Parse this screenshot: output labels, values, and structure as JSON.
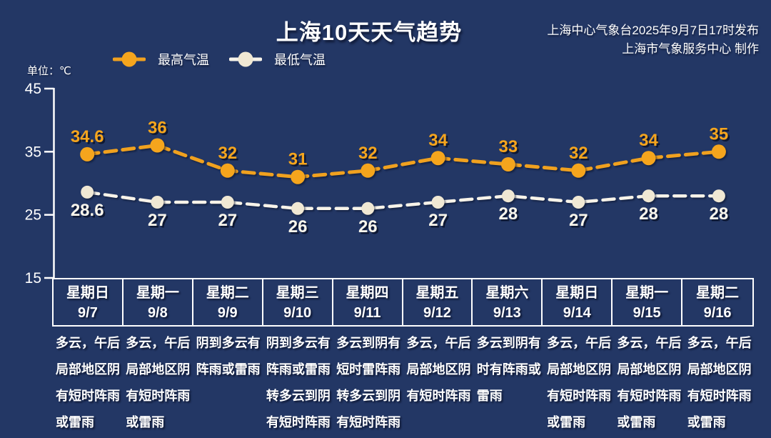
{
  "header": {
    "title": "上海10天天气趋势",
    "publisher_line1": "上海中心气象台2025年9月7日17时发布",
    "publisher_line2": "上海市气象服务中心 制作",
    "unit_label": "单位：℃"
  },
  "colors": {
    "background": "#233765",
    "max_temp": "#f5a51d",
    "min_temp_line": "#f7f3e9",
    "min_temp_marker": "#f0e8d4",
    "text": "#ffffff",
    "border": "#ffffff"
  },
  "chart_data": {
    "type": "line",
    "title": "上海10天天气趋势",
    "unit": "℃",
    "ylim": [
      15,
      45
    ],
    "yticks": [
      45,
      35,
      25,
      15
    ],
    "grid": false,
    "legend_position": "top-left",
    "line_style": "dashed",
    "x_categories": [
      {
        "weekday": "星期日",
        "date": "9/7"
      },
      {
        "weekday": "星期一",
        "date": "9/8"
      },
      {
        "weekday": "星期二",
        "date": "9/9"
      },
      {
        "weekday": "星期三",
        "date": "9/10"
      },
      {
        "weekday": "星期四",
        "date": "9/11"
      },
      {
        "weekday": "星期五",
        "date": "9/12"
      },
      {
        "weekday": "星期六",
        "date": "9/13"
      },
      {
        "weekday": "星期日",
        "date": "9/14"
      },
      {
        "weekday": "星期一",
        "date": "9/15"
      },
      {
        "weekday": "星期二",
        "date": "9/16"
      }
    ],
    "series": [
      {
        "name": "最高气温",
        "values": [
          34.6,
          36,
          32,
          31,
          32,
          34,
          33,
          32,
          34,
          35
        ],
        "line_color": "#f0a11f",
        "marker_color": "#f5a51d",
        "label_color": "#f5a51d"
      },
      {
        "name": "最低气温",
        "values": [
          28.6,
          27,
          27,
          26,
          26,
          27,
          28,
          27,
          28,
          28
        ],
        "line_color": "#f7f3e9",
        "marker_color": "#f0e8d4",
        "label_color": "#faf6ec"
      }
    ]
  },
  "forecasts": [
    "多云，午后局部地区阴有短时阵雨或雷雨",
    "多云，午后局部地区阴有短时阵雨或雷雨",
    "阴到多云有阵雨或雷雨",
    "阴到多云有阵雨或雷雨转多云到阴有短时阵雨",
    "多云到阴有短时雷阵雨转多云到阴有短时阵雨",
    "多云，午后局部地区阴有短时阵雨",
    "多云到阴有时有阵雨或雷雨",
    "多云，午后局部地区阴有短时阵雨或雷雨",
    "多云，午后局部地区阴有短时阵雨或雷雨",
    "多云，午后局部地区阴有短时阵雨或雷雨"
  ]
}
